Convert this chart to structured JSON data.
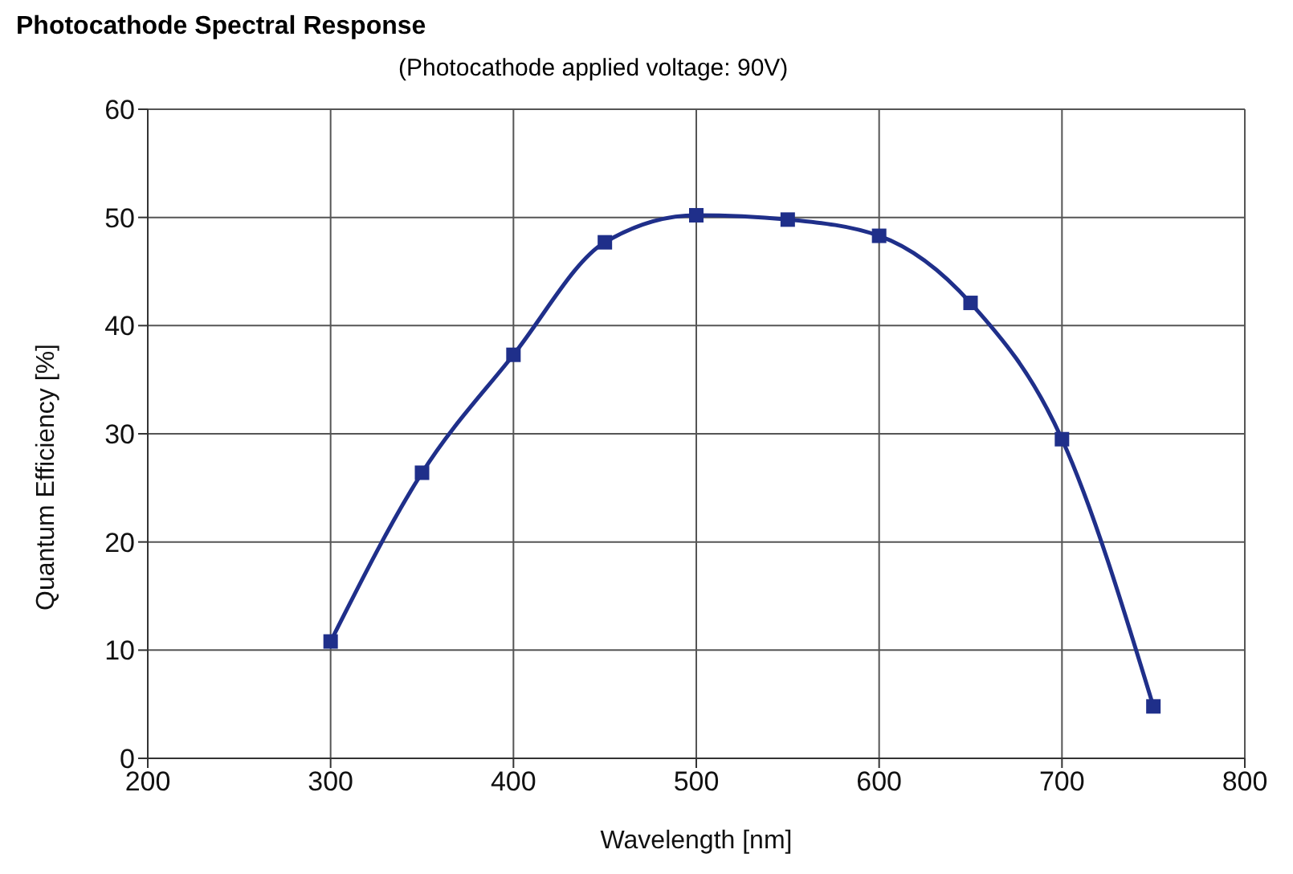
{
  "chart_data": {
    "type": "line",
    "title": "Photocathode Spectral Response",
    "subtitle": "(Photocathode applied voltage:   90V)",
    "xlabel": "Wavelength [nm]",
    "ylabel": "Quantum Efficiency [%]",
    "x": [
      300,
      350,
      400,
      450,
      500,
      550,
      600,
      650,
      700,
      750
    ],
    "series": [
      {
        "color": "#1f2f8a",
        "values": [
          10.8,
          26.4,
          37.3,
          47.7,
          50.2,
          49.8,
          48.3,
          42.1,
          29.5,
          4.8
        ]
      }
    ],
    "xlim": [
      200,
      800
    ],
    "xticks": [
      200,
      300,
      400,
      500,
      600,
      700,
      800
    ],
    "ylim": [
      0,
      60
    ],
    "yticks": [
      0,
      10,
      20,
      30,
      40,
      50,
      60
    ],
    "grid": true,
    "legend": false,
    "marker": "square",
    "line_style": "solid"
  }
}
